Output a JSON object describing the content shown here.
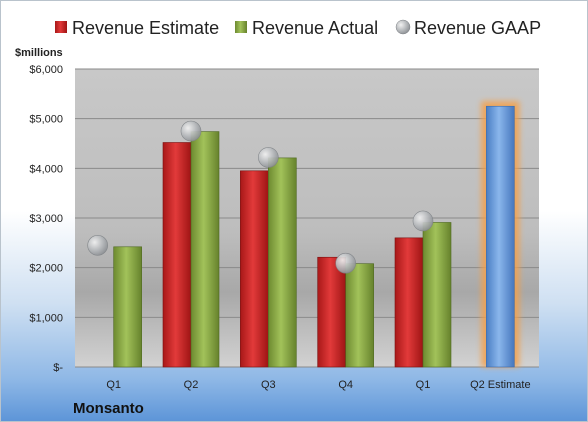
{
  "chart_data": {
    "type": "bar",
    "unit_label": "$millions",
    "company": "Monsanto",
    "categories": [
      "Q1",
      "Q2",
      "Q3",
      "Q4",
      "Q1",
      "Q2 Estimate"
    ],
    "series": [
      {
        "name": "Revenue Estimate",
        "color": "#d92a2a",
        "values": [
          null,
          4520,
          3950,
          2210,
          2600,
          5250
        ]
      },
      {
        "name": "Revenue Actual",
        "color": "#8fb04a",
        "values": [
          2420,
          4740,
          4210,
          2080,
          2910,
          null
        ]
      },
      {
        "name": "Revenue GAAP",
        "color": "#b0b4b8",
        "values": [
          2450,
          4750,
          4220,
          2090,
          2940,
          null
        ]
      }
    ],
    "highlight": {
      "category_index": 5,
      "color": "#6b9fdc",
      "glow": "#f5a04a"
    },
    "ylim": [
      0,
      6000
    ],
    "yticks": [
      0,
      1000,
      2000,
      3000,
      4000,
      5000,
      6000
    ],
    "ytick_labels": [
      "$-",
      "$1,000",
      "$2,000",
      "$3,000",
      "$4,000",
      "$5,000",
      "$6,000"
    ],
    "legend_position": "top",
    "grid": true
  }
}
